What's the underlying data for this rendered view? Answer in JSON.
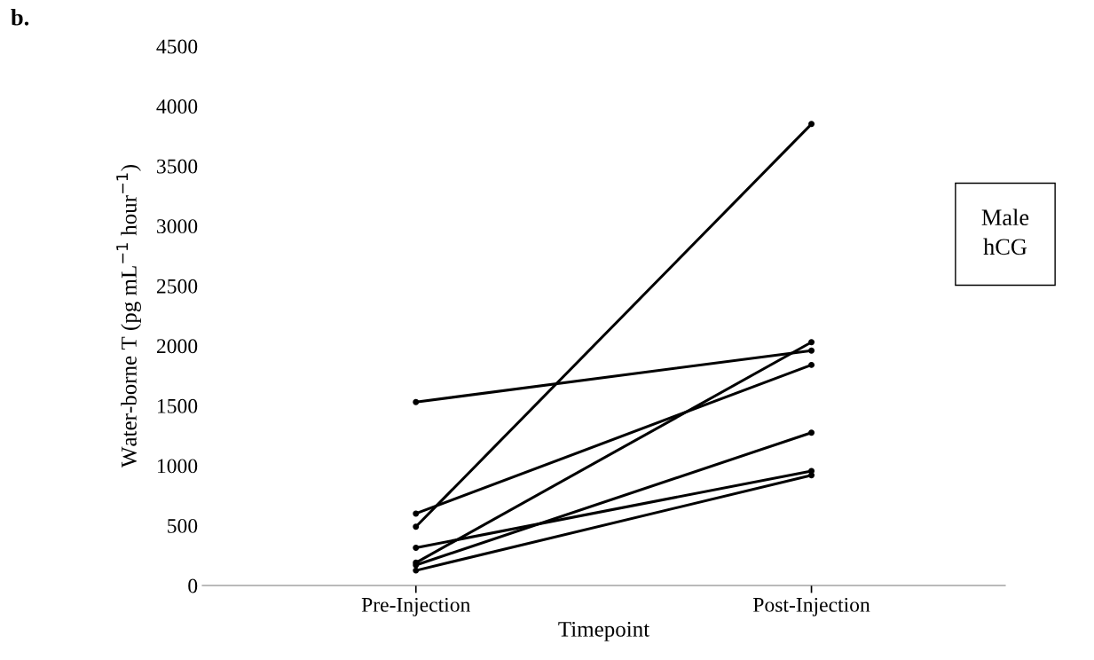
{
  "chart_data": {
    "type": "line",
    "xlabel": "Timepoint",
    "ylabel": "Water-borne T (pg mL$^{−1}$ hour$^{−1}$)",
    "categories": [
      "Pre-Injection",
      "Post-Injection"
    ],
    "series": [
      {
        "color": "#000000",
        "values": [
          1530,
          1960
        ]
      },
      {
        "color": "#000000",
        "values": [
          490,
          3850
        ]
      },
      {
        "color": "#000000",
        "values": [
          600,
          1840
        ]
      },
      {
        "color": "#000000",
        "values": [
          190,
          2030
        ]
      },
      {
        "color": "#000000",
        "values": [
          315,
          955
        ]
      },
      {
        "color": "#000000",
        "values": [
          170,
          1275
        ]
      },
      {
        "color": "#000000",
        "values": [
          125,
          920
        ]
      }
    ],
    "ylim": [
      0,
      4500
    ],
    "yticks": [
      0,
      500,
      1000,
      1500,
      2000,
      2500,
      3000,
      3500,
      4000,
      4500
    ],
    "annotations": [
      "b.",
      "Male\nhCG"
    ],
    "marker": "circle",
    "line_style": "solid",
    "grid": false,
    "legend": false
  }
}
